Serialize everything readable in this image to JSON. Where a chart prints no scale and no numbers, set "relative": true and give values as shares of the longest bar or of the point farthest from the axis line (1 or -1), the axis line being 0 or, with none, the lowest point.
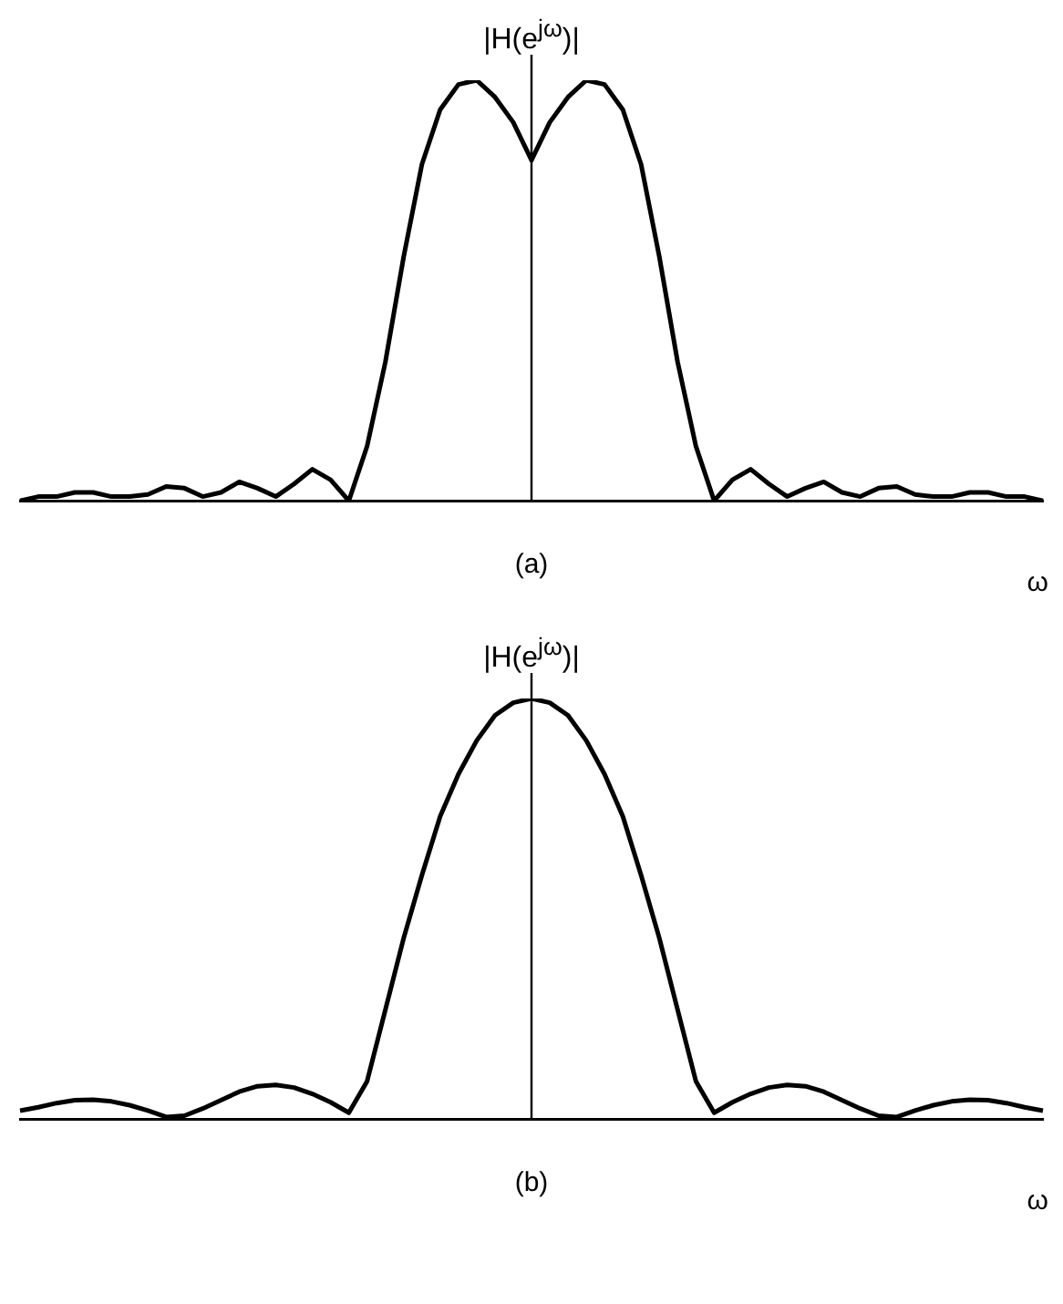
{
  "chart_data": [
    {
      "type": "line",
      "relative": true,
      "ylabel": "|H(e$^{jω}$)|",
      "xlabel": "ω",
      "annotations": [
        "(a)"
      ],
      "grid": false,
      "legend": false,
      "marker": "none",
      "line_style": "solid",
      "categories": [
        null,
        null,
        null,
        null,
        null,
        null,
        null,
        null,
        null,
        null,
        null,
        null,
        null,
        null,
        null,
        null,
        null,
        null,
        null,
        null,
        null,
        null,
        null,
        null,
        null,
        null,
        null,
        null,
        null,
        null,
        null,
        null,
        null,
        null,
        null,
        null,
        null,
        null,
        null,
        null,
        null,
        null,
        null,
        null,
        null,
        null,
        null,
        null,
        null,
        null,
        null,
        null,
        null,
        null,
        null,
        null,
        null
      ],
      "series": [
        {
          "color": "#000000",
          "values": [
            0,
            0.01,
            0.01,
            0.02,
            0.02,
            0.01,
            0.01,
            0.015,
            0.034,
            0.03,
            0.01,
            0.02,
            0.045,
            0.03,
            0.01,
            0.04,
            0.075,
            0.05,
            0,
            0.13,
            0.33,
            0.58,
            0.8,
            0.93,
            0.99,
            1,
            0.96,
            0.9,
            0.81,
            0.9,
            0.96,
            1,
            0.99,
            0.93,
            0.8,
            0.58,
            0.33,
            0.13,
            0,
            0.05,
            0.075,
            0.04,
            0.01,
            0.03,
            0.045,
            0.02,
            0.01,
            0.03,
            0.034,
            0.015,
            0.01,
            0.01,
            0.02,
            0.02,
            0.01,
            0.01,
            0
          ]
        }
      ]
    },
    {
      "type": "line",
      "relative": true,
      "ylabel": "|H(e$^{jω}$)|",
      "xlabel": "ω",
      "annotations": [
        "(b)"
      ],
      "grid": false,
      "legend": false,
      "marker": "none",
      "line_style": "solid",
      "categories": [
        null,
        null,
        null,
        null,
        null,
        null,
        null,
        null,
        null,
        null,
        null,
        null,
        null,
        null,
        null,
        null,
        null,
        null,
        null,
        null,
        null,
        null,
        null,
        null,
        null,
        null,
        null,
        null,
        null,
        null,
        null,
        null,
        null,
        null,
        null,
        null,
        null,
        null,
        null,
        null,
        null,
        null,
        null,
        null,
        null,
        null,
        null,
        null,
        null,
        null,
        null,
        null,
        null,
        null,
        null,
        null,
        null
      ],
      "series": [
        {
          "color": "#000000",
          "values": [
            0.02,
            0.028,
            0.038,
            0.045,
            0.046,
            0.042,
            0.033,
            0.02,
            0.005,
            0.008,
            0.025,
            0.045,
            0.065,
            0.078,
            0.081,
            0.075,
            0.06,
            0.04,
            0.015,
            0.09,
            0.26,
            0.43,
            0.58,
            0.72,
            0.82,
            0.9,
            0.96,
            0.99,
            1,
            0.99,
            0.96,
            0.9,
            0.82,
            0.72,
            0.58,
            0.43,
            0.26,
            0.09,
            0.015,
            0.04,
            0.06,
            0.075,
            0.081,
            0.078,
            0.065,
            0.045,
            0.025,
            0.008,
            0.005,
            0.02,
            0.033,
            0.042,
            0.046,
            0.045,
            0.038,
            0.028,
            0.02
          ]
        }
      ]
    }
  ]
}
